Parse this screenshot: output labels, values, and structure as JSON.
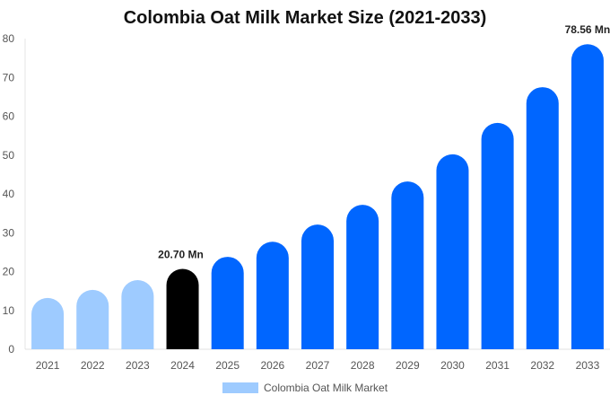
{
  "chart_data": {
    "type": "bar",
    "title": "Colombia Oat Milk Market Size (2021-2033)",
    "xlabel": "",
    "ylabel": "",
    "ylim": [
      0,
      80
    ],
    "yticks": [
      0,
      10,
      20,
      30,
      40,
      50,
      60,
      70,
      80
    ],
    "categories": [
      "2021",
      "2022",
      "2023",
      "2024",
      "2025",
      "2026",
      "2027",
      "2028",
      "2029",
      "2030",
      "2031",
      "2032",
      "2033"
    ],
    "series": [
      {
        "name": "Colombia Oat Milk Market",
        "values": [
          13.2,
          15.3,
          17.8,
          20.7,
          23.8,
          27.7,
          32.1,
          37.2,
          43.2,
          50.2,
          58.3,
          67.5,
          78.56
        ]
      }
    ],
    "data_labels": [
      {
        "category": "2024",
        "text": "20.70 Mn"
      },
      {
        "category": "2033",
        "text": "78.56 Mn"
      }
    ],
    "bar_colors": {
      "historical": "#9ecbff",
      "current": "#000000",
      "forecast": "#0066ff"
    },
    "bar_color_groups": [
      "historical",
      "historical",
      "historical",
      "current",
      "forecast",
      "forecast",
      "forecast",
      "forecast",
      "forecast",
      "forecast",
      "forecast",
      "forecast",
      "forecast"
    ],
    "grid": false,
    "legend_placement": "bottom"
  }
}
